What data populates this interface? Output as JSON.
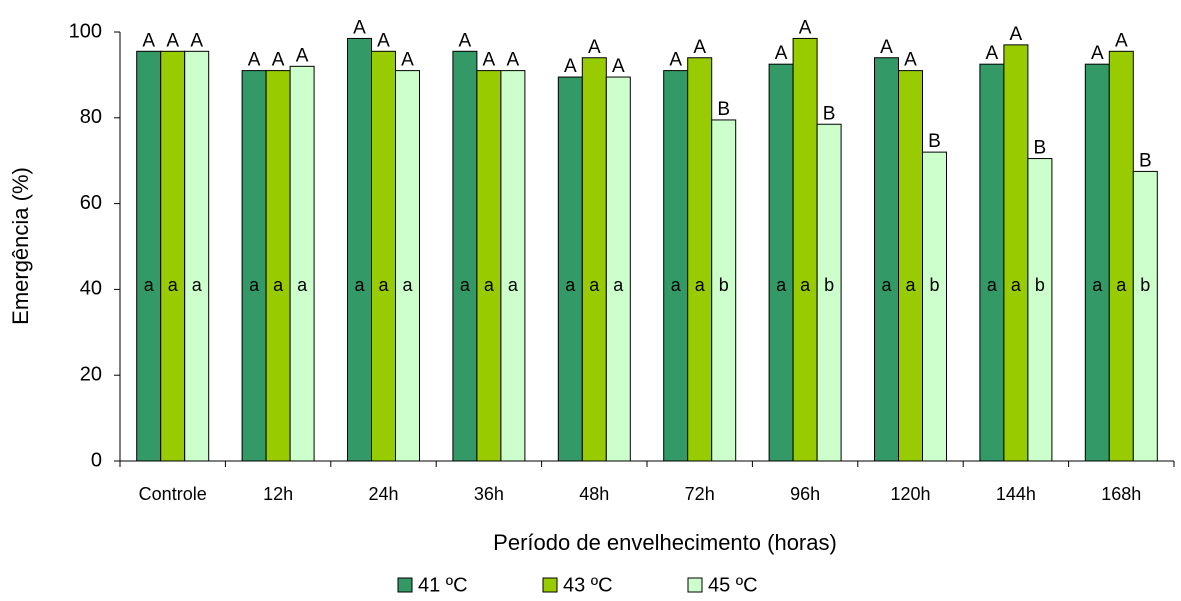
{
  "chart_data": {
    "type": "bar",
    "x_label": "Período de envelhecimento (horas)",
    "y_label": "Emergência (%)",
    "categories": [
      "Controle",
      "12h",
      "24h",
      "36h",
      "48h",
      "72h",
      "96h",
      "120h",
      "144h",
      "168h"
    ],
    "series": [
      {
        "name": "41 ºC",
        "color": "#339966",
        "values": [
          95.5,
          91,
          98.5,
          95.5,
          89.5,
          91,
          92.5,
          94,
          92.5,
          92.5
        ],
        "letters_above": [
          "A",
          "A",
          "A",
          "A",
          "A",
          "A",
          "A",
          "A",
          "A",
          "A"
        ],
        "letters_inside": [
          "a",
          "a",
          "a",
          "a",
          "a",
          "a",
          "a",
          "a",
          "a",
          "a"
        ]
      },
      {
        "name": "43 ºC",
        "color": "#99cc00",
        "values": [
          95.5,
          91,
          95.5,
          91,
          94,
          94,
          98.5,
          91,
          97,
          95.5
        ],
        "letters_above": [
          "A",
          "A",
          "A",
          "A",
          "A",
          "A",
          "A",
          "A",
          "A",
          "A"
        ],
        "letters_inside": [
          "a",
          "a",
          "a",
          "a",
          "a",
          "a",
          "a",
          "a",
          "a",
          "a"
        ]
      },
      {
        "name": "45 ºC",
        "color": "#ccffcc",
        "values": [
          95.5,
          92,
          91,
          91,
          89.5,
          79.5,
          78.5,
          72,
          70.5,
          67.5
        ],
        "letters_above": [
          "A",
          "A",
          "A",
          "A",
          "A",
          "B",
          "B",
          "B",
          "B",
          "B"
        ],
        "letters_inside": [
          "a",
          "a",
          "a",
          "a",
          "a",
          "b",
          "b",
          "b",
          "b",
          "b"
        ]
      }
    ],
    "ylim": [
      0,
      100
    ],
    "yticks": [
      0,
      20,
      40,
      60,
      80,
      100
    ],
    "grid": false
  }
}
